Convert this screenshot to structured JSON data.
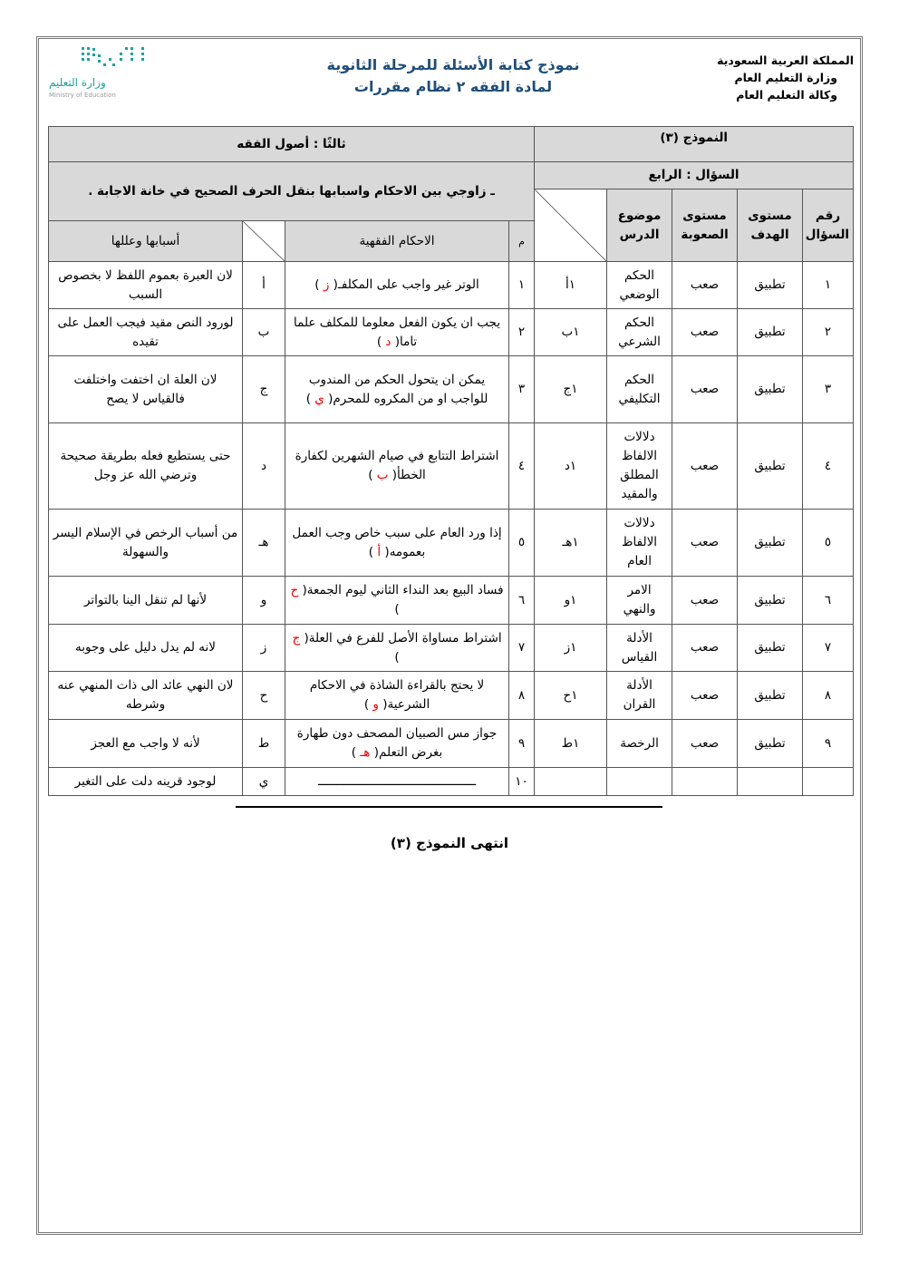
{
  "header": {
    "org_lines": [
      "المملكة العربية السعودية",
      "وزارة التعليم العام",
      "وكالة التعليم العام"
    ],
    "title": "نموذج كتابة الأسئلة للمرحلة الثانوية",
    "subtitle": "لمادة الفقه ٢ نظام مقررات",
    "logo": {
      "text_ar": "وزارة التعليم",
      "text_en": "Ministry of Education",
      "color": "#1aa39a"
    }
  },
  "table": {
    "model_label": "النموذج (٣)",
    "section_label": "ثالثًا : أصول الفقه",
    "question_label": "السؤال : الرابع",
    "instruction": "ـ زاوجي بين الاحكام واسبابها بنقل الحرف  الصحيح في خانة الاجابة .",
    "right_headers": [
      "رقم السؤال",
      "مستوى الهدف",
      "مستوى الصعوبة",
      "موضوع الدرس"
    ],
    "left_headers": [
      "م",
      "الاحكام الفقهية",
      "أسبابها وعللها"
    ],
    "rows": [
      {
        "num": "١",
        "goal": "تطبيق",
        "difficulty": "صعب",
        "topic": "الحكم الوضعي",
        "key": "١أ",
        "m": "١",
        "ruling": "الوتر غير واجب على المكلفـ",
        "answer": "ز",
        "letter": "أ",
        "reason": "لان العبرة بعموم اللفظ لا بخصوص السبب"
      },
      {
        "num": "٢",
        "goal": "تطبيق",
        "difficulty": "صعب",
        "topic": "الحكم الشرعي",
        "key": "١ب",
        "m": "٢",
        "ruling": "يجب ان يكون الفعل معلوما للمكلف علما تاما",
        "answer": "د",
        "letter": "ب",
        "reason": "لورود النص مقيد فيجب العمل على تقيده"
      },
      {
        "num": "٣",
        "goal": "تطبيق",
        "difficulty": "صعب",
        "topic": "الحكم التكليفي",
        "key": "١ج",
        "m": "٣",
        "ruling": "يمكن ان يتحول الحكم من المندوب للواجب او من المكروه للمحرم",
        "answer": "ي",
        "letter": "ج",
        "reason": "لان العلة ان اختفت واختلفت فالقياس لا يصح"
      },
      {
        "num": "٤",
        "goal": "تطبيق",
        "difficulty": "صعب",
        "topic": "دلالات الالفاظ المطلق والمقيد",
        "key": "١د",
        "m": "٤",
        "ruling": "اشتراط التتابع في صيام الشهرين لكفارة الخطأ",
        "answer": "ب",
        "letter": "د",
        "reason": "حتى يستطيع فعله بطريقة صحيحة وترضي الله عز وجل"
      },
      {
        "num": "٥",
        "goal": "تطبيق",
        "difficulty": "صعب",
        "topic": "دلالات الالفاظ العام",
        "key": "١هـ",
        "m": "٥",
        "ruling": "إذا ورد العام على سبب خاص وجب العمل بعمومه",
        "answer": "أ",
        "letter": "هـ",
        "reason": "من أسباب الرخص في الإسلام اليسر والسهولة"
      },
      {
        "num": "٦",
        "goal": "تطبيق",
        "difficulty": "صعب",
        "topic": "الامر والنهي",
        "key": "١و",
        "m": "٦",
        "ruling": "فساد البيع بعد النداء الثاني ليوم الجمعة",
        "answer": "ح",
        "letter": "و",
        "reason": "لأنها لم تنقل الينا بالتواتر"
      },
      {
        "num": "٧",
        "goal": "تطبيق",
        "difficulty": "صعب",
        "topic": "الأدلة القياس",
        "key": "١ز",
        "m": "٧",
        "ruling": "اشتراط مساواة الأصل للفرع في العلة",
        "answer": "ج",
        "letter": "ز",
        "reason": "لانه لم يدل  دليل على وجوبه"
      },
      {
        "num": "٨",
        "goal": "تطبيق",
        "difficulty": "صعب",
        "topic": "الأدلة القران",
        "key": "١ح",
        "m": "٨",
        "ruling": "لا يحتج بالقراءة الشاذة في الاحكام الشرعية",
        "answer": "و",
        "letter": "ح",
        "reason": "لان النهي عائد الى ذات المنهي عنه وشرطه"
      },
      {
        "num": "٩",
        "goal": "تطبيق",
        "difficulty": "صعب",
        "topic": "الرخصة",
        "key": "١ط",
        "m": "٩",
        "ruling": "جواز مس الصبيان المصحف دون طهارة بغرض التعلم",
        "answer": "هـ",
        "letter": "ط",
        "reason": "لأنه لا واجب مع العجز"
      },
      {
        "num": "",
        "goal": "",
        "difficulty": "",
        "topic": "",
        "key": "",
        "m": "١٠",
        "ruling": "ــــــــــــــــــــــــــــــــــــــــــــ",
        "answer": "",
        "letter": "ي",
        "reason": "لوجود قرينه  دلت  على التغير"
      }
    ]
  },
  "footer": {
    "end_text": "انتهى النموذج (٣)"
  },
  "colors": {
    "header_fill": "#d9d9d9",
    "title_blue": "#1f4e79",
    "answer_red": "#e00000"
  }
}
